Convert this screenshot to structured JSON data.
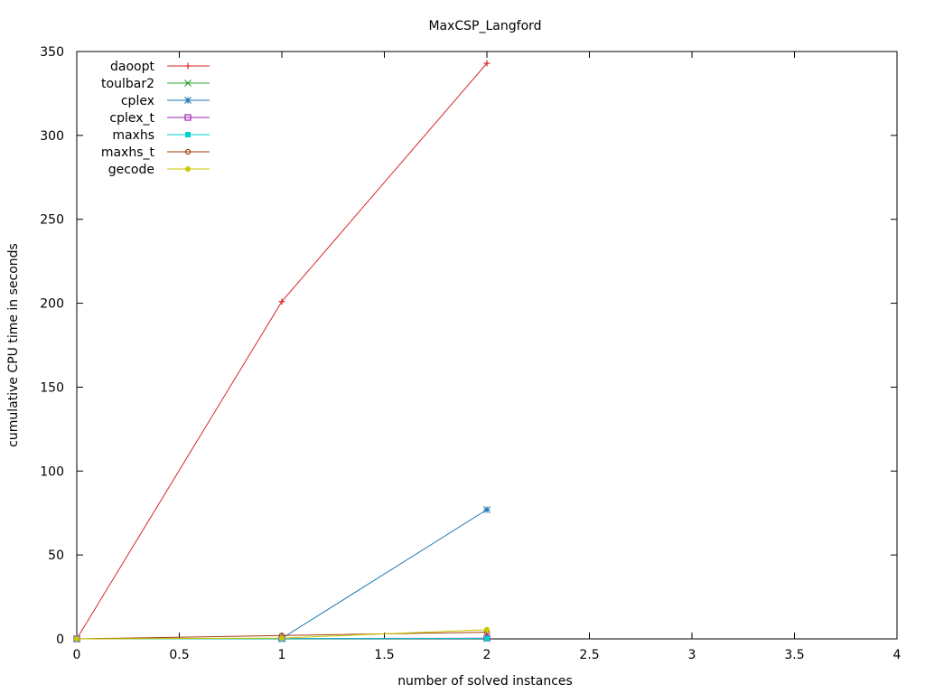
{
  "chart_data": {
    "type": "line",
    "title": "MaxCSP_Langford",
    "xlabel": "number of solved instances",
    "ylabel": "cumulative CPU time in seconds",
    "xlim": [
      0,
      4
    ],
    "ylim": [
      0,
      350
    ],
    "xticks": [
      "0",
      "0.5",
      "1",
      "1.5",
      "2",
      "2.5",
      "3",
      "3.5",
      "4"
    ],
    "yticks": [
      "0",
      "50",
      "100",
      "150",
      "200",
      "250",
      "300",
      "350"
    ],
    "grid": false,
    "legend_position": "top-left",
    "series": [
      {
        "name": "daoopt",
        "color": "#d62728",
        "marker": "plus",
        "x": [
          0,
          1,
          2
        ],
        "y": [
          0,
          201,
          343
        ]
      },
      {
        "name": "toulbar2",
        "color": "#2ca02c",
        "marker": "cross",
        "x": [
          0,
          1,
          2
        ],
        "y": [
          0,
          0.1,
          0.3
        ]
      },
      {
        "name": "cplex",
        "color": "#1f77b4",
        "marker": "star",
        "x": [
          0,
          1,
          2
        ],
        "y": [
          0,
          0.3,
          77
        ]
      },
      {
        "name": "cplex_t",
        "color": "#9c27b0",
        "marker": "open-square",
        "x": [
          0,
          1,
          2
        ],
        "y": [
          0,
          0.2,
          0.4
        ]
      },
      {
        "name": "maxhs",
        "color": "#00cfcf",
        "marker": "filled-square",
        "x": [
          0,
          1,
          2
        ],
        "y": [
          0,
          0.1,
          0.2
        ]
      },
      {
        "name": "maxhs_t",
        "color": "#a0400a",
        "marker": "open-circle",
        "x": [
          0,
          1,
          2
        ],
        "y": [
          0,
          2,
          4
        ]
      },
      {
        "name": "gecode",
        "color": "#c8c800",
        "marker": "filled-circle",
        "x": [
          0,
          1,
          2
        ],
        "y": [
          0,
          0.5,
          5.5
        ]
      }
    ]
  }
}
